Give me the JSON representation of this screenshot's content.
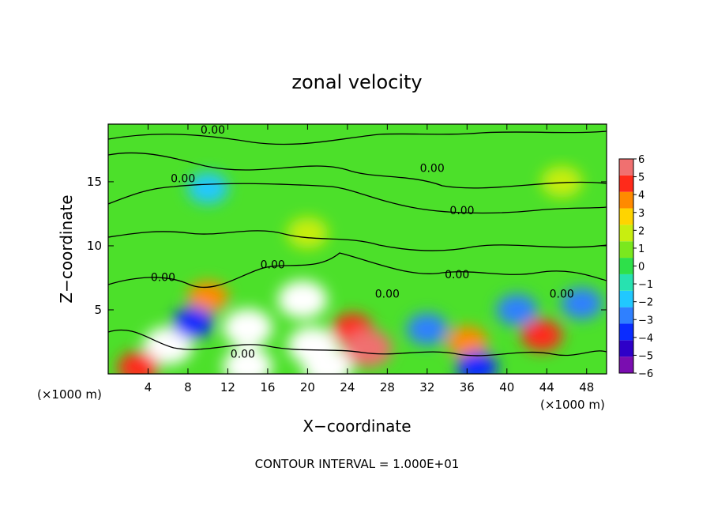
{
  "chart_data": {
    "type": "heatmap",
    "title": "zonal velocity",
    "xlabel": "X−coordinate",
    "ylabel": "Z−coordinate",
    "x_unit_left": "(×1000 m)",
    "x_unit_right": "(×1000 m)",
    "xlim": [
      0,
      50
    ],
    "ylim": [
      0,
      19.5
    ],
    "x_ticks": [
      4,
      8,
      12,
      16,
      20,
      24,
      28,
      32,
      36,
      40,
      44,
      48
    ],
    "y_ticks": [
      5,
      10,
      15
    ],
    "contour_level_label": "0.00",
    "contour_labels": [
      {
        "x": 10.5,
        "z": 19.0
      },
      {
        "x": 7.5,
        "z": 15.2
      },
      {
        "x": 32.5,
        "z": 16.0
      },
      {
        "x": 35.5,
        "z": 12.7
      },
      {
        "x": 16.5,
        "z": 8.5
      },
      {
        "x": 5.5,
        "z": 7.5
      },
      {
        "x": 28.0,
        "z": 6.2
      },
      {
        "x": 35.0,
        "z": 7.7
      },
      {
        "x": 45.5,
        "z": 6.2
      },
      {
        "x": 13.5,
        "z": 1.5
      }
    ],
    "colorbar": {
      "min": -6,
      "max": 6,
      "ticks": [
        6,
        5,
        4,
        3,
        2,
        1,
        0,
        -1,
        -2,
        -3,
        -4,
        -5,
        -6
      ],
      "tick_labels": [
        "6",
        "5",
        "4",
        "3",
        "2",
        "1",
        "0",
        "−1",
        "−2",
        "−3",
        "−4",
        "−5",
        "−6"
      ],
      "colors": [
        "#7a0db0",
        "#2e00c8",
        "#0a2cff",
        "#2f80ff",
        "#21c8ff",
        "#27e2b0",
        "#2ee04a",
        "#7ae81e",
        "#c8ee10",
        "#ffd400",
        "#ff8a00",
        "#ff2a1a",
        "#f07070"
      ]
    },
    "features": [
      {
        "x": 14.0,
        "z": 3.6,
        "value": -7.5,
        "note": "saturated negative core"
      },
      {
        "x": 19.5,
        "z": 5.8,
        "value": -7.0,
        "note": "saturated negative core"
      },
      {
        "x": 20.5,
        "z": 2.2,
        "value": 7.0,
        "note": "saturated positive core"
      },
      {
        "x": 24.5,
        "z": 3.5,
        "value": 5.0
      },
      {
        "x": 6.0,
        "z": 2.2,
        "value": 7.0,
        "note": "saturated positive core"
      },
      {
        "x": 26.0,
        "z": 2.0,
        "value": 6.0
      },
      {
        "x": 22.0,
        "z": 0.5,
        "value": 7.0
      },
      {
        "x": 14.0,
        "z": 0.6,
        "value": 7.0
      },
      {
        "x": 10.0,
        "z": 6.0,
        "value": 4.0
      },
      {
        "x": 43.5,
        "z": 3.0,
        "value": 4.5
      },
      {
        "x": 36.0,
        "z": 2.5,
        "value": 4.0
      },
      {
        "x": 47.5,
        "z": 5.5,
        "value": -3.0
      },
      {
        "x": 41.0,
        "z": 5.0,
        "value": -2.5
      },
      {
        "x": 37.0,
        "z": 0.5,
        "value": -4.0
      },
      {
        "x": 32.0,
        "z": 3.5,
        "value": -3.0
      },
      {
        "x": 8.5,
        "z": 4.0,
        "value": -3.5
      },
      {
        "x": 3.0,
        "z": 0.5,
        "value": 4.5
      },
      {
        "x": 45.5,
        "z": 15.0,
        "value": 2.0
      },
      {
        "x": 20.0,
        "z": 11.0,
        "value": 1.5
      },
      {
        "x": 10.0,
        "z": 14.5,
        "value": -1.5
      }
    ]
  },
  "footer": {
    "contour_interval": "CONTOUR INTERVAL =  1.000E+01"
  }
}
